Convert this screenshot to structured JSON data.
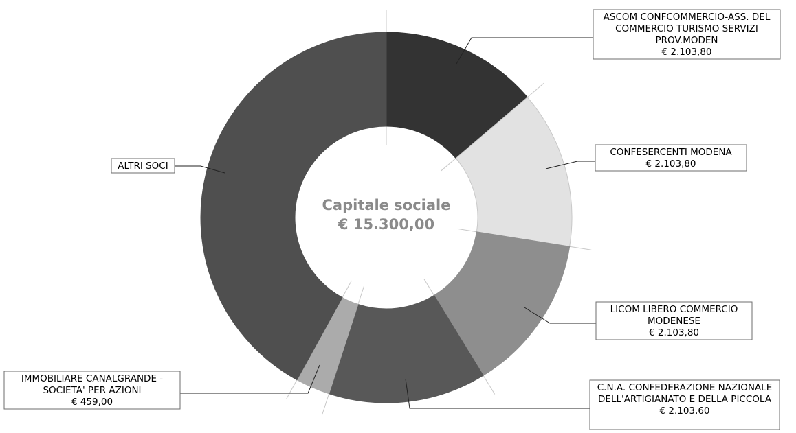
{
  "chart_data": {
    "type": "pie",
    "donut": true,
    "center": {
      "title": "Capitale sociale",
      "value": "€ 15.300,00"
    },
    "slices": [
      {
        "name": "ASCOM CONFCOMMERCIO-ASS. DEL COMMERCIO TURISMO SERVIZI PROV.MODEN",
        "value": 2103.8,
        "value_label": "€ 2.103,80",
        "color": "#333333"
      },
      {
        "name": "CONFESERCENTI MODENA",
        "value": 2103.8,
        "value_label": "€ 2.103,80",
        "color": "#e2e2e2"
      },
      {
        "name": "LICOM LIBERO COMMERCIO MODENESE",
        "value": 2103.8,
        "value_label": "€ 2.103,80",
        "color": "#8e8e8e"
      },
      {
        "name": "C.N.A. CONFEDERAZIONE NAZIONALE DELL'ARTIGIANATO E DELLA PICCOLA",
        "value": 2103.6,
        "value_label": "€ 2.103,60",
        "color": "#585858"
      },
      {
        "name": "IMMOBILIARE CANALGRANDE - SOCIETA' PER AZIONI",
        "value": 459.0,
        "value_label": "€ 459,00",
        "color": "#ababab"
      },
      {
        "name": "ALTRI SOCI",
        "value": 6426.0,
        "value_label": "",
        "color": "#4f4f4f"
      }
    ]
  }
}
